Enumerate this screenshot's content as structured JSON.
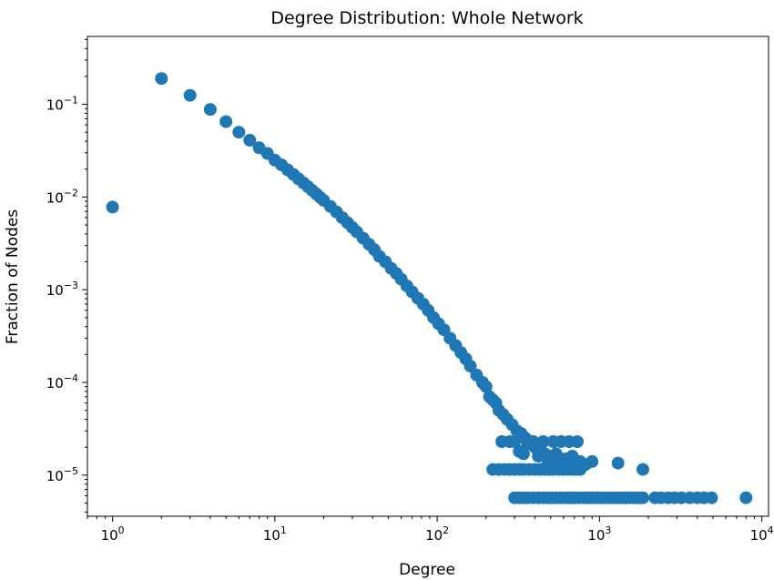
{
  "chart_data": {
    "type": "scatter",
    "title": "Degree Distribution: Whole Network",
    "xlabel": "Degree",
    "ylabel": "Fraction of Nodes",
    "xscale": "log",
    "yscale": "log",
    "xlim": [
      0.7,
      11000
    ],
    "ylim": [
      3.6e-06,
      0.54
    ],
    "grid": false,
    "marker_color": "#1f77b4",
    "x_ticks": [
      {
        "value": 1,
        "base": "10",
        "exp": "0"
      },
      {
        "value": 10,
        "base": "10",
        "exp": "1"
      },
      {
        "value": 100,
        "base": "10",
        "exp": "2"
      },
      {
        "value": 1000,
        "base": "10",
        "exp": "3"
      },
      {
        "value": 10000,
        "base": "10",
        "exp": "4"
      }
    ],
    "y_ticks": [
      {
        "value": 1e-05,
        "base": "10",
        "exp": "−5"
      },
      {
        "value": 0.0001,
        "base": "10",
        "exp": "−4"
      },
      {
        "value": 0.001,
        "base": "10",
        "exp": "−3"
      },
      {
        "value": 0.01,
        "base": "10",
        "exp": "−2"
      },
      {
        "value": 0.1,
        "base": "10",
        "exp": "−1"
      }
    ],
    "points": [
      [
        1,
        0.0078
      ],
      [
        2,
        0.19
      ],
      [
        3,
        0.125
      ],
      [
        4,
        0.088
      ],
      [
        5,
        0.065
      ],
      [
        6,
        0.05
      ],
      [
        7,
        0.041
      ],
      [
        8,
        0.034
      ],
      [
        9,
        0.0295
      ],
      [
        10,
        0.025
      ],
      [
        11,
        0.0222
      ],
      [
        12,
        0.0196
      ],
      [
        13,
        0.0175
      ],
      [
        14,
        0.0157
      ],
      [
        15,
        0.0142
      ],
      [
        16,
        0.0129
      ],
      [
        17,
        0.0118
      ],
      [
        18,
        0.0108
      ],
      [
        19,
        0.0099
      ],
      [
        20,
        0.0092
      ],
      [
        22,
        0.0079
      ],
      [
        24,
        0.0069
      ],
      [
        26,
        0.006
      ],
      [
        28,
        0.0053
      ],
      [
        30,
        0.0047
      ],
      [
        32,
        0.0042
      ],
      [
        35,
        0.0036
      ],
      [
        38,
        0.0031
      ],
      [
        41,
        0.0027
      ],
      [
        44,
        0.0023
      ],
      [
        48,
        0.002
      ],
      [
        52,
        0.0017
      ],
      [
        56,
        0.0015
      ],
      [
        60,
        0.0013
      ],
      [
        65,
        0.0011
      ],
      [
        70,
        0.00095
      ],
      [
        76,
        0.00081
      ],
      [
        82,
        0.0007
      ],
      [
        88,
        0.0006
      ],
      [
        95,
        0.0005
      ],
      [
        102,
        0.00043
      ],
      [
        110,
        0.00037
      ],
      [
        120,
        0.0003
      ],
      [
        130,
        0.00025
      ],
      [
        140,
        0.00021
      ],
      [
        150,
        0.00018
      ],
      [
        160,
        0.00015
      ],
      [
        175,
        0.00012
      ],
      [
        190,
        0.0001
      ],
      [
        200,
        9e-05
      ],
      [
        210,
        7e-05
      ],
      [
        220,
        6.5e-05
      ],
      [
        230,
        6e-05
      ],
      [
        240,
        5e-05
      ],
      [
        255,
        4.5e-05
      ],
      [
        270,
        4e-05
      ],
      [
        290,
        3.5e-05
      ],
      [
        310,
        3e-05
      ],
      [
        330,
        2.8e-05
      ],
      [
        350,
        2.5e-05
      ],
      [
        380,
        2.3e-05
      ],
      [
        400,
        2e-05
      ],
      [
        430,
        1.9e-05
      ],
      [
        460,
        1.7e-05
      ],
      [
        500,
        1.6e-05
      ],
      [
        560,
        1.5e-05
      ],
      [
        620,
        1.5e-05
      ],
      [
        700,
        1.4e-05
      ],
      [
        900,
        1.4e-05
      ],
      [
        320,
        1.8e-05
      ],
      [
        360,
        2.2e-05
      ],
      [
        420,
        1.6e-05
      ],
      [
        480,
        1.3e-05
      ],
      [
        540,
        1.7e-05
      ],
      [
        600,
        1.3e-05
      ],
      [
        680,
        1.6e-05
      ],
      [
        760,
        1.4e-05
      ],
      [
        820,
        1.3e-05
      ],
      [
        1300,
        1.35e-05
      ],
      [
        250,
        2.3e-05
      ],
      [
        280,
        2.3e-05
      ],
      [
        300,
        2.3e-05
      ],
      [
        340,
        1.7e-05
      ],
      [
        390,
        2.3e-05
      ],
      [
        450,
        2.3e-05
      ],
      [
        520,
        2.3e-05
      ],
      [
        580,
        2.3e-05
      ],
      [
        650,
        2.3e-05
      ],
      [
        730,
        2.3e-05
      ],
      [
        220,
        1.15e-05
      ],
      [
        240,
        1.15e-05
      ],
      [
        260,
        1.15e-05
      ],
      [
        280,
        1.15e-05
      ],
      [
        300,
        1.15e-05
      ],
      [
        320,
        1.15e-05
      ],
      [
        340,
        1.15e-05
      ],
      [
        370,
        1.15e-05
      ],
      [
        400,
        1.15e-05
      ],
      [
        430,
        1.15e-05
      ],
      [
        460,
        1.15e-05
      ],
      [
        490,
        1.15e-05
      ],
      [
        520,
        1.15e-05
      ],
      [
        560,
        1.15e-05
      ],
      [
        600,
        1.15e-05
      ],
      [
        640,
        1.15e-05
      ],
      [
        680,
        1.15e-05
      ],
      [
        720,
        1.15e-05
      ],
      [
        760,
        1.15e-05
      ],
      [
        1850,
        1.15e-05
      ],
      [
        300,
        5.7e-06
      ],
      [
        320,
        5.7e-06
      ],
      [
        340,
        5.7e-06
      ],
      [
        360,
        5.7e-06
      ],
      [
        390,
        5.7e-06
      ],
      [
        420,
        5.7e-06
      ],
      [
        450,
        5.7e-06
      ],
      [
        480,
        5.7e-06
      ],
      [
        510,
        5.7e-06
      ],
      [
        540,
        5.7e-06
      ],
      [
        580,
        5.7e-06
      ],
      [
        620,
        5.7e-06
      ],
      [
        660,
        5.7e-06
      ],
      [
        700,
        5.7e-06
      ],
      [
        750,
        5.7e-06
      ],
      [
        800,
        5.7e-06
      ],
      [
        850,
        5.7e-06
      ],
      [
        900,
        5.7e-06
      ],
      [
        960,
        5.7e-06
      ],
      [
        1020,
        5.7e-06
      ],
      [
        1080,
        5.7e-06
      ],
      [
        1150,
        5.7e-06
      ],
      [
        1220,
        5.7e-06
      ],
      [
        1300,
        5.7e-06
      ],
      [
        1380,
        5.7e-06
      ],
      [
        1450,
        5.7e-06
      ],
      [
        1550,
        5.7e-06
      ],
      [
        1650,
        5.7e-06
      ],
      [
        1750,
        5.7e-06
      ],
      [
        1850,
        5.7e-06
      ],
      [
        2200,
        5.7e-06
      ],
      [
        2400,
        5.7e-06
      ],
      [
        2650,
        5.7e-06
      ],
      [
        2900,
        5.7e-06
      ],
      [
        3200,
        5.7e-06
      ],
      [
        3600,
        5.7e-06
      ],
      [
        4000,
        5.7e-06
      ],
      [
        4400,
        5.7e-06
      ],
      [
        4900,
        5.7e-06
      ],
      [
        8000,
        5.7e-06
      ]
    ]
  }
}
